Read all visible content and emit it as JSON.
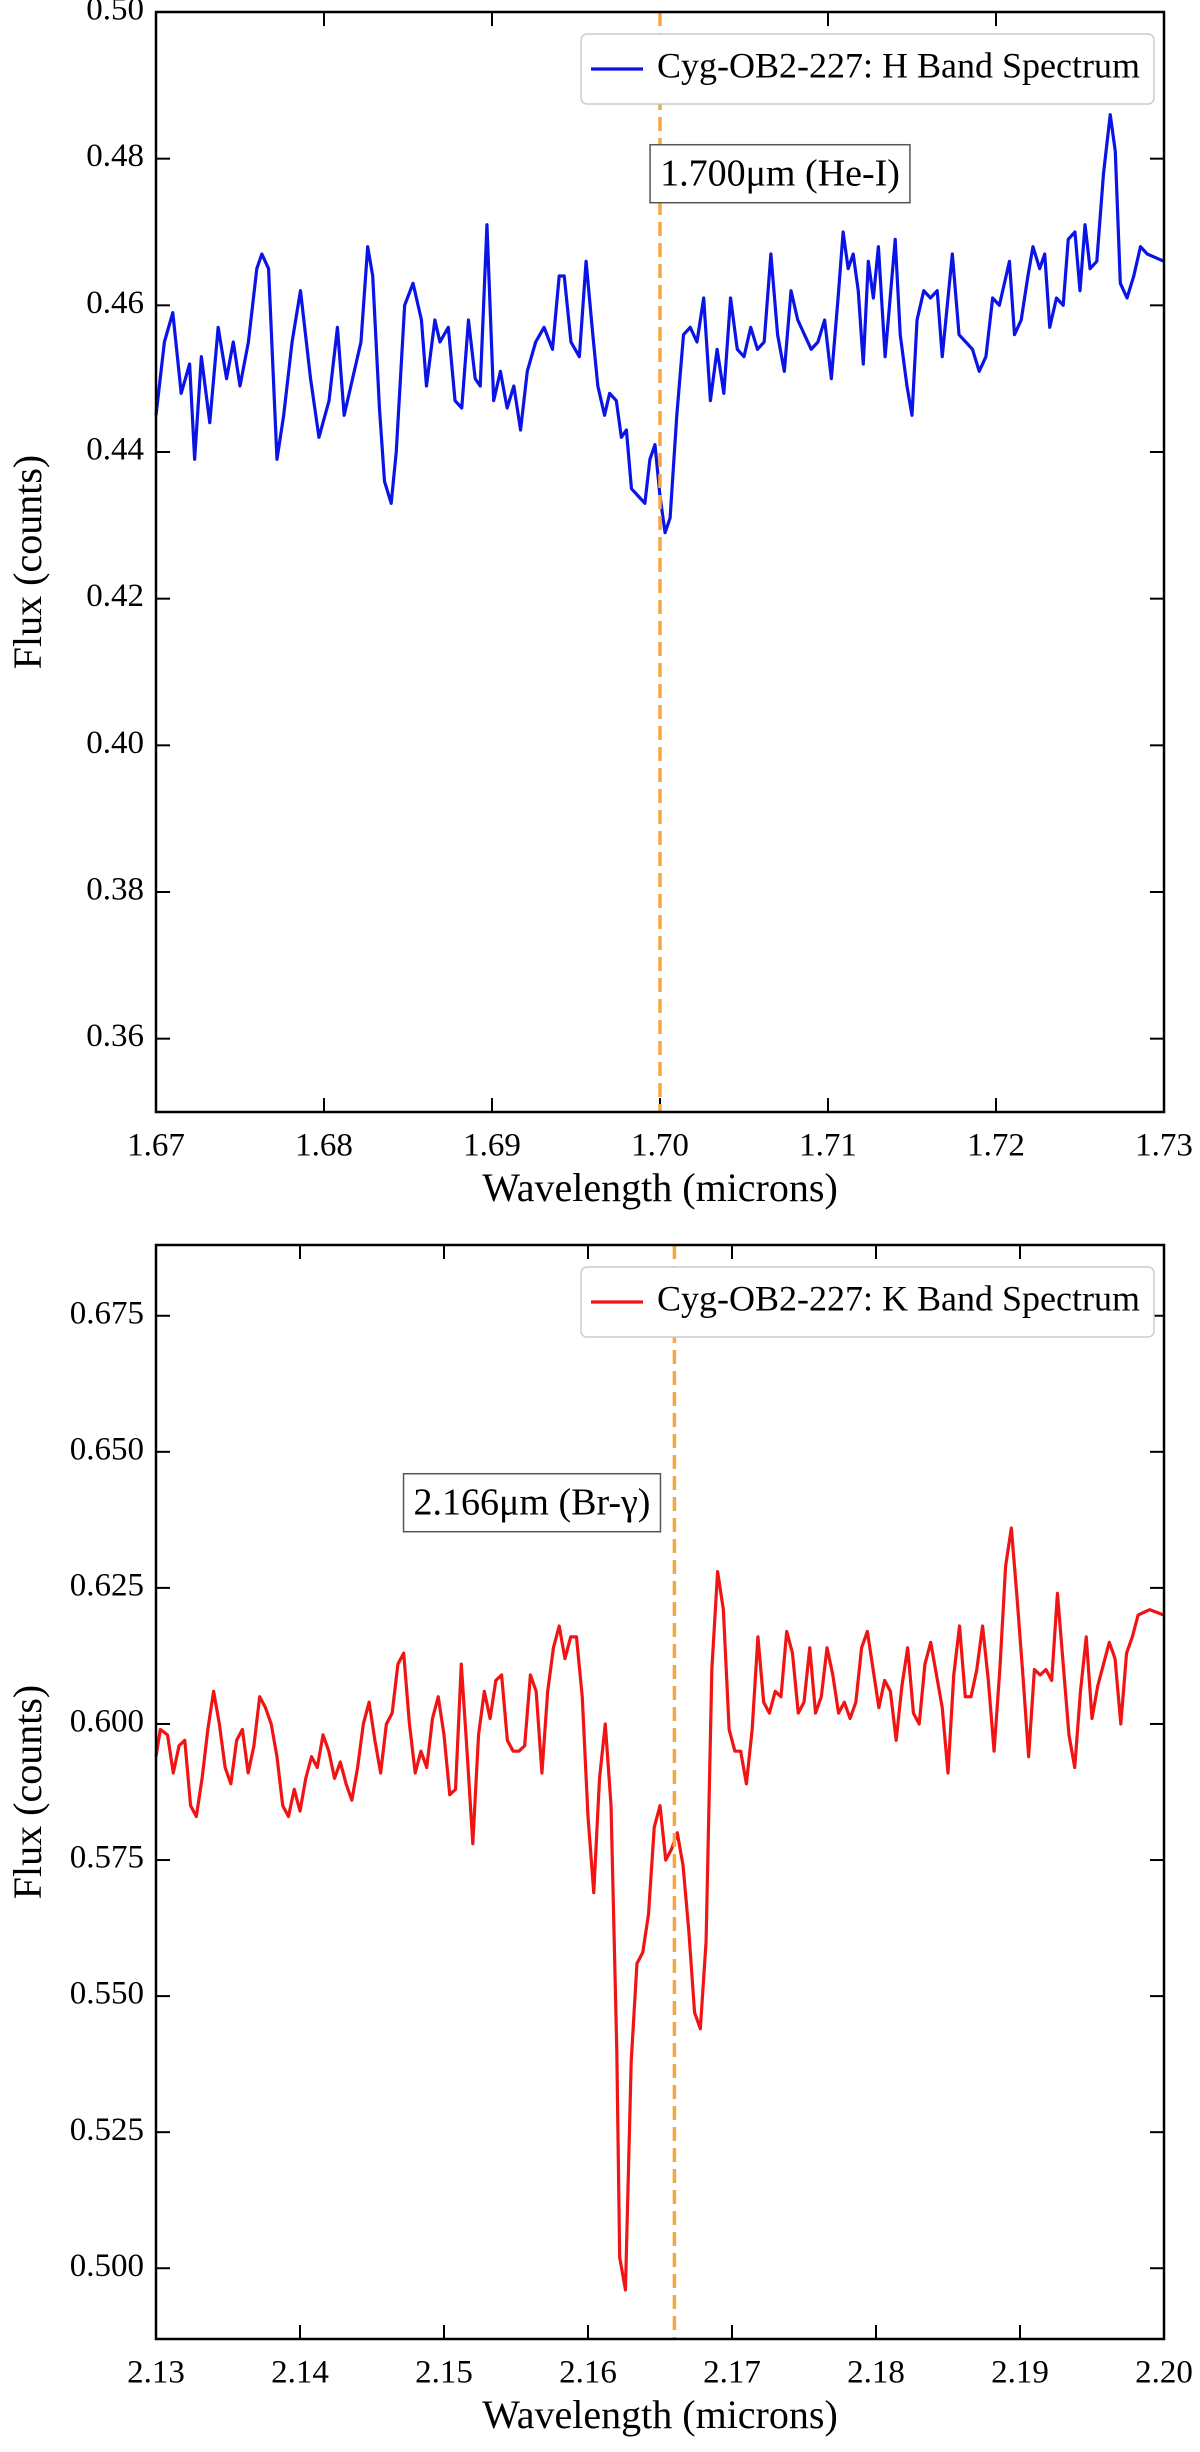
{
  "chart_data": [
    {
      "type": "line",
      "x_label": "Wavelength (microns)",
      "y_label": "Flux (counts)",
      "xlim": [
        1.67,
        1.73
      ],
      "xticks": [
        1.67,
        1.68,
        1.69,
        {
          "value": 1.7,
          "label": "1.70"
        },
        1.71,
        1.72,
        1.73
      ],
      "ylim": [
        0.35,
        0.5
      ],
      "yticks": [
        0.36,
        0.38,
        {
          "value": 0.4,
          "label": "0.40"
        },
        0.42,
        0.44,
        0.46,
        0.48,
        {
          "value": 0.5,
          "label": "0.50"
        }
      ],
      "legend": "upper right",
      "vline": {
        "x": 1.7,
        "color": "#f5a742"
      },
      "annotation": "1.700μm (He-I)",
      "x": [
        1.67,
        1.6705,
        1.671,
        1.6715,
        1.672,
        1.6723,
        1.6727,
        1.6732,
        1.6737,
        1.6742,
        1.6746,
        1.675,
        1.6755,
        1.676,
        1.6763,
        1.6767,
        1.6772,
        1.6776,
        1.6781,
        1.6786,
        1.6792,
        1.6797,
        1.6803,
        1.6808,
        1.6812,
        1.6817,
        1.6822,
        1.6826,
        1.6829,
        1.6833,
        1.6836,
        1.684,
        1.6843,
        1.6848,
        1.6853,
        1.6858,
        1.6861,
        1.6866,
        1.6869,
        1.6874,
        1.6878,
        1.6882,
        1.6886,
        1.689,
        1.6893,
        1.6897,
        1.6901,
        1.6905,
        1.6909,
        1.6913,
        1.6917,
        1.6921,
        1.6926,
        1.6931,
        1.6936,
        1.694,
        1.6943,
        1.6947,
        1.6952,
        1.6956,
        1.696,
        1.6963,
        1.6967,
        1.697,
        1.6974,
        1.6977,
        1.698,
        1.6983,
        1.6987,
        1.6991,
        1.6994,
        1.6997,
        1.7,
        1.7003,
        1.7006,
        1.701,
        1.7014,
        1.7018,
        1.7022,
        1.7026,
        1.703,
        1.7034,
        1.7038,
        1.7042,
        1.7046,
        1.705,
        1.7054,
        1.7058,
        1.7062,
        1.7066,
        1.707,
        1.7074,
        1.7078,
        1.7082,
        1.7086,
        1.709,
        1.7094,
        1.7098,
        1.7102,
        1.7106,
        1.7109,
        1.7112,
        1.7115,
        1.7118,
        1.7121,
        1.7124,
        1.7127,
        1.713,
        1.7134,
        1.7137,
        1.714,
        1.7143,
        1.7147,
        1.715,
        1.7153,
        1.7157,
        1.7161,
        1.7165,
        1.7168,
        1.7171,
        1.7174,
        1.7178,
        1.7182,
        1.7186,
        1.719,
        1.7194,
        1.7198,
        1.7202,
        1.7205,
        1.7208,
        1.7211,
        1.7215,
        1.7219,
        1.7222,
        1.7226,
        1.7229,
        1.7232,
        1.7236,
        1.724,
        1.7243,
        1.7247,
        1.725,
        1.7253,
        1.7256,
        1.726,
        1.7264,
        1.7268,
        1.7271,
        1.7274,
        1.7278,
        1.7282,
        1.7286,
        1.729,
        1.73
      ],
      "series": [
        {
          "name": "Cyg-OB2-227: H Band Spectrum",
          "color": "#0a14e6",
          "values": [
            0.445,
            0.455,
            0.459,
            0.448,
            0.452,
            0.439,
            0.453,
            0.444,
            0.457,
            0.45,
            0.455,
            0.449,
            0.455,
            0.465,
            0.467,
            0.465,
            0.439,
            0.445,
            0.455,
            0.462,
            0.45,
            0.442,
            0.447,
            0.457,
            0.445,
            0.45,
            0.455,
            0.468,
            0.464,
            0.446,
            0.436,
            0.433,
            0.44,
            0.46,
            0.463,
            0.458,
            0.449,
            0.458,
            0.455,
            0.457,
            0.447,
            0.446,
            0.458,
            0.45,
            0.449,
            0.471,
            0.447,
            0.451,
            0.446,
            0.449,
            0.443,
            0.451,
            0.455,
            0.457,
            0.454,
            0.464,
            0.464,
            0.455,
            0.453,
            0.466,
            0.456,
            0.449,
            0.445,
            0.448,
            0.447,
            0.442,
            0.443,
            0.435,
            0.434,
            0.433,
            0.439,
            0.441,
            0.434,
            0.429,
            0.431,
            0.445,
            0.456,
            0.457,
            0.455,
            0.461,
            0.447,
            0.454,
            0.448,
            0.461,
            0.454,
            0.453,
            0.457,
            0.454,
            0.455,
            0.467,
            0.456,
            0.451,
            0.462,
            0.458,
            0.456,
            0.454,
            0.455,
            0.458,
            0.45,
            0.461,
            0.47,
            0.465,
            0.467,
            0.462,
            0.452,
            0.466,
            0.461,
            0.468,
            0.453,
            0.461,
            0.469,
            0.456,
            0.449,
            0.445,
            0.458,
            0.462,
            0.461,
            0.462,
            0.453,
            0.46,
            0.467,
            0.456,
            0.455,
            0.454,
            0.451,
            0.453,
            0.461,
            0.46,
            0.463,
            0.466,
            0.456,
            0.458,
            0.464,
            0.468,
            0.465,
            0.467,
            0.457,
            0.461,
            0.46,
            0.469,
            0.47,
            0.462,
            0.471,
            0.465,
            0.466,
            0.478,
            0.486,
            0.481,
            0.463,
            0.461,
            0.464,
            0.468,
            0.467,
            0.466
          ]
        }
      ]
    },
    {
      "type": "line",
      "x_label": "Wavelength (microns)",
      "y_label": "Flux (counts)",
      "xlim": [
        2.13,
        2.2
      ],
      "xticks": [
        2.13,
        2.14,
        2.15,
        2.16,
        2.17,
        2.18,
        2.19,
        {
          "value": 2.2,
          "label": "2.20"
        }
      ],
      "ylim": [
        0.487,
        0.688
      ],
      "yticks": [
        {
          "value": 0.5,
          "label": "0.500"
        },
        0.525,
        {
          "value": 0.55,
          "label": "0.550"
        },
        0.575,
        {
          "value": 0.6,
          "label": "0.600"
        },
        0.625,
        {
          "value": 0.65,
          "label": "0.650"
        },
        0.675
      ],
      "legend": "upper right",
      "vline": {
        "x": 2.166,
        "color": "#f5a742"
      },
      "annotation": "2.166μm (Br-γ)",
      "x": [
        2.13,
        2.1303,
        2.1308,
        2.1312,
        2.1316,
        2.132,
        2.1324,
        2.1328,
        2.1332,
        2.1336,
        2.134,
        2.1344,
        2.1348,
        2.1352,
        2.1356,
        2.136,
        2.1364,
        2.1368,
        2.1372,
        2.1376,
        2.138,
        2.1384,
        2.1388,
        2.1392,
        2.1396,
        2.14,
        2.1404,
        2.1408,
        2.1412,
        2.1416,
        2.142,
        2.1424,
        2.1428,
        2.1432,
        2.1436,
        2.144,
        2.1444,
        2.1448,
        2.1452,
        2.1456,
        2.146,
        2.1464,
        2.1468,
        2.1472,
        2.1476,
        2.148,
        2.1484,
        2.1488,
        2.1492,
        2.1496,
        2.15,
        2.1504,
        2.1508,
        2.1512,
        2.1516,
        2.152,
        2.1524,
        2.1528,
        2.1532,
        2.1536,
        2.154,
        2.1544,
        2.1548,
        2.1552,
        2.1556,
        2.156,
        2.1564,
        2.1568,
        2.1572,
        2.1576,
        2.158,
        2.1584,
        2.1588,
        2.1592,
        2.1596,
        2.16,
        2.1604,
        2.1608,
        2.1612,
        2.1616,
        2.162,
        2.1622,
        2.1626,
        2.163,
        2.1634,
        2.1638,
        2.1642,
        2.1646,
        2.165,
        2.1654,
        2.1658,
        2.1662,
        2.1666,
        2.167,
        2.1674,
        2.1678,
        2.1682,
        2.1686,
        2.169,
        2.1694,
        2.1698,
        2.1702,
        2.1706,
        2.171,
        2.1714,
        2.1718,
        2.1722,
        2.1726,
        2.173,
        2.1734,
        2.1738,
        2.1742,
        2.1746,
        2.175,
        2.1754,
        2.1758,
        2.1762,
        2.1766,
        2.177,
        2.1774,
        2.1778,
        2.1782,
        2.1786,
        2.179,
        2.1794,
        2.1798,
        2.1802,
        2.1806,
        2.181,
        2.1814,
        2.1818,
        2.1822,
        2.1826,
        2.183,
        2.1834,
        2.1838,
        2.1842,
        2.1846,
        2.185,
        2.1854,
        2.1858,
        2.1862,
        2.1866,
        2.187,
        2.1874,
        2.1878,
        2.1882,
        2.1886,
        2.189,
        2.1894,
        2.1898,
        2.1902,
        2.1906,
        2.191,
        2.1914,
        2.1918,
        2.1922,
        2.1926,
        2.193,
        2.1934,
        2.1938,
        2.1942,
        2.1946,
        2.195,
        2.1954,
        2.1958,
        2.1962,
        2.1966,
        2.197,
        2.1974,
        2.1978,
        2.1982,
        2.199,
        2.2
      ],
      "series": [
        {
          "name": "Cyg-OB2-227: K Band Spectrum",
          "color": "#f01414",
          "values": [
            0.594,
            0.599,
            0.598,
            0.591,
            0.596,
            0.597,
            0.585,
            0.583,
            0.59,
            0.599,
            0.606,
            0.6,
            0.592,
            0.589,
            0.597,
            0.599,
            0.591,
            0.596,
            0.605,
            0.603,
            0.6,
            0.594,
            0.585,
            0.583,
            0.588,
            0.584,
            0.59,
            0.594,
            0.592,
            0.598,
            0.595,
            0.59,
            0.593,
            0.589,
            0.586,
            0.592,
            0.6,
            0.604,
            0.597,
            0.591,
            0.6,
            0.602,
            0.611,
            0.613,
            0.6,
            0.591,
            0.595,
            0.592,
            0.601,
            0.605,
            0.598,
            0.587,
            0.588,
            0.611,
            0.595,
            0.578,
            0.598,
            0.606,
            0.601,
            0.608,
            0.609,
            0.597,
            0.595,
            0.595,
            0.596,
            0.609,
            0.606,
            0.591,
            0.606,
            0.614,
            0.618,
            0.612,
            0.616,
            0.616,
            0.605,
            0.583,
            0.569,
            0.59,
            0.6,
            0.585,
            0.54,
            0.502,
            0.496,
            0.538,
            0.556,
            0.558,
            0.565,
            0.581,
            0.585,
            0.575,
            0.577,
            0.58,
            0.574,
            0.562,
            0.547,
            0.544,
            0.56,
            0.61,
            0.628,
            0.621,
            0.599,
            0.595,
            0.595,
            0.589,
            0.599,
            0.616,
            0.604,
            0.602,
            0.606,
            0.605,
            0.617,
            0.613,
            0.602,
            0.604,
            0.614,
            0.602,
            0.605,
            0.614,
            0.609,
            0.602,
            0.604,
            0.601,
            0.604,
            0.614,
            0.617,
            0.61,
            0.603,
            0.608,
            0.606,
            0.597,
            0.607,
            0.614,
            0.602,
            0.6,
            0.611,
            0.615,
            0.609,
            0.603,
            0.591,
            0.609,
            0.618,
            0.605,
            0.605,
            0.61,
            0.618,
            0.608,
            0.595,
            0.61,
            0.629,
            0.636,
            0.623,
            0.609,
            0.594,
            0.61,
            0.609,
            0.61,
            0.608,
            0.624,
            0.611,
            0.598,
            0.592,
            0.606,
            0.616,
            0.601,
            0.607,
            0.611,
            0.615,
            0.612,
            0.6,
            0.613,
            0.616,
            0.62,
            0.621,
            0.62
          ]
        }
      ]
    }
  ]
}
